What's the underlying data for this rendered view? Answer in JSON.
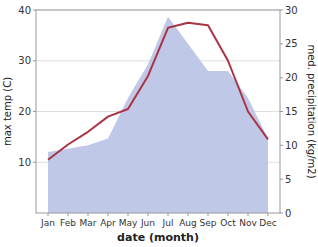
{
  "chart_data": {
    "type": "line",
    "x_label": "date (month)",
    "y_label": "max temp (C)",
    "y2_label": "med. precipitation (kg/m2)",
    "categories": [
      "Jan",
      "Feb",
      "Mar",
      "Apr",
      "May",
      "Jun",
      "Jul",
      "Aug",
      "Sep",
      "Oct",
      "Nov",
      "Dec"
    ],
    "series": [
      {
        "type": "area",
        "axis": "y2",
        "color": "#c0c8e8",
        "values": [
          9.0,
          9.5,
          10.0,
          11.0,
          17.0,
          22.0,
          29.0,
          25.0,
          21.0,
          21.0,
          17.0,
          11.0
        ]
      },
      {
        "type": "line",
        "color": "#aa3344",
        "values": [
          10.5,
          13.5,
          16.0,
          19.0,
          20.5,
          27.0,
          36.5,
          37.5,
          37.0,
          30.0,
          20.0,
          14.5
        ]
      }
    ],
    "ylim": [
      0,
      40
    ],
    "yticks": [
      10,
      20,
      30,
      40
    ],
    "y2lim": [
      0,
      30
    ],
    "y2ticks": [
      0,
      5,
      10,
      15,
      20,
      25,
      30
    ],
    "grid": true
  }
}
